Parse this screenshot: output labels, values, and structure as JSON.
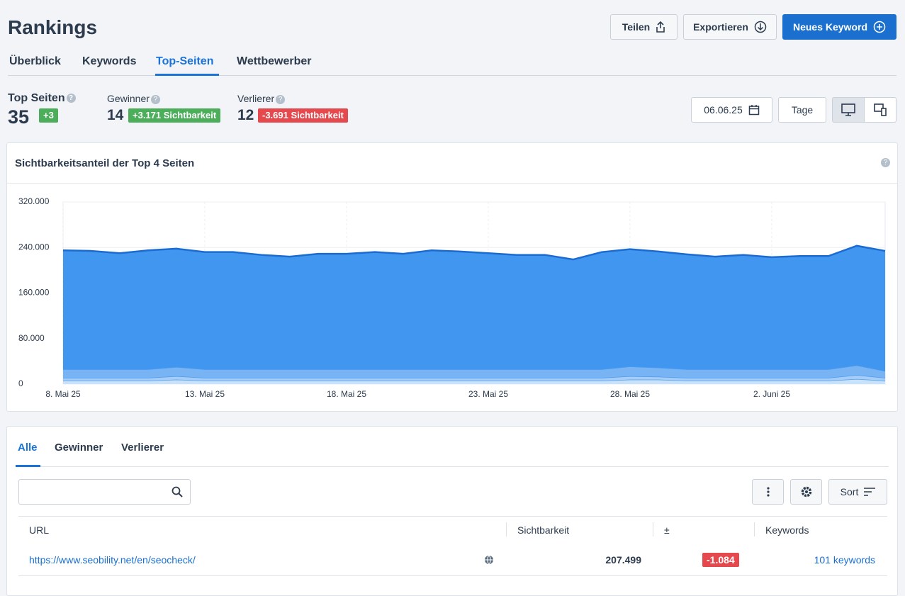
{
  "header": {
    "title": "Rankings",
    "buttons": [
      "Teilen",
      "Exportieren",
      "Neues Keyword"
    ]
  },
  "tabs": [
    "Überblick",
    "Keywords",
    "Top-Seiten",
    "Wettbewerber"
  ],
  "stats": [
    {
      "label": "Top Seiten",
      "value": 35,
      "badge": "+3"
    },
    {
      "label": "Gewinner",
      "value": 14,
      "badge": "+3.171 Sichtbarkeit"
    },
    {
      "label": "Verlierer",
      "value": 12,
      "badge": "-3.691 Sichtbarkeit"
    }
  ],
  "controls": {
    "date": "06.06.25",
    "period": "Tage"
  },
  "chart_data": {
    "type": "stacked-area",
    "title": "Sichtbarkeitsanteil der Top 4 Seiten",
    "categories": [
      "8. Mai 25",
      null,
      null,
      null,
      null,
      "13. Mai 25",
      null,
      null,
      null,
      null,
      "18. Mai 25",
      null,
      null,
      null,
      null,
      "23. Mai 25",
      null,
      null,
      null,
      null,
      "28. Mai 25",
      null,
      null,
      null,
      null,
      "2. Juni 25",
      null,
      null,
      null,
      null
    ],
    "series": [
      {
        "color": "#c9e2fb",
        "values": [
          6000,
          6000,
          6000,
          6000,
          8000,
          6000,
          6000,
          6000,
          6000,
          6000,
          6000,
          6000,
          6000,
          6000,
          6000,
          6000,
          6000,
          6000,
          6000,
          6000,
          8000,
          8000,
          6000,
          6000,
          6000,
          6000,
          6000,
          6000,
          9000,
          6000
        ]
      },
      {
        "color": "#a6cdf7",
        "values": [
          5000,
          5000,
          5000,
          5000,
          6000,
          5000,
          5000,
          5000,
          5000,
          5000,
          5000,
          5000,
          5000,
          5000,
          5000,
          5000,
          5000,
          5000,
          5000,
          5000,
          6000,
          5000,
          5000,
          5000,
          5000,
          5000,
          5000,
          5000,
          7000,
          5000
        ]
      },
      {
        "color": "#78b4f4",
        "values": [
          15000,
          15000,
          15000,
          15000,
          16000,
          15000,
          15000,
          15000,
          15000,
          15000,
          15000,
          15000,
          15000,
          15000,
          15000,
          15000,
          15000,
          15000,
          15000,
          15000,
          17000,
          16000,
          15000,
          15000,
          15000,
          15000,
          15000,
          15000,
          17000,
          12000
        ]
      },
      {
        "color": "#4196f0",
        "values": [
          209000,
          208000,
          204000,
          209000,
          208000,
          206000,
          206000,
          201000,
          198000,
          203000,
          203000,
          206000,
          203000,
          209000,
          207000,
          204000,
          201000,
          201000,
          193000,
          206000,
          206000,
          204000,
          202000,
          198000,
          201000,
          197000,
          199000,
          199000,
          210000,
          211000
        ]
      }
    ],
    "ylim": [
      0,
      320000
    ],
    "yticks": [
      0,
      {
        "value": 80000,
        "label": "80.000"
      },
      {
        "value": 160000,
        "label": "160.000"
      },
      {
        "value": 240000,
        "label": "240.000"
      },
      {
        "value": 320000,
        "label": "320.000"
      }
    ],
    "grid": true
  },
  "table": {
    "tabs": [
      "Alle",
      "Gewinner",
      "Verlierer"
    ],
    "sort": "Sort",
    "columns": [
      "URL",
      "Sichtbarkeit",
      "±",
      "Keywords"
    ],
    "rows": [
      [
        "https://www.seobility.net/en/seocheck/",
        "207.499",
        "-1.084",
        "101 keywords"
      ]
    ]
  }
}
